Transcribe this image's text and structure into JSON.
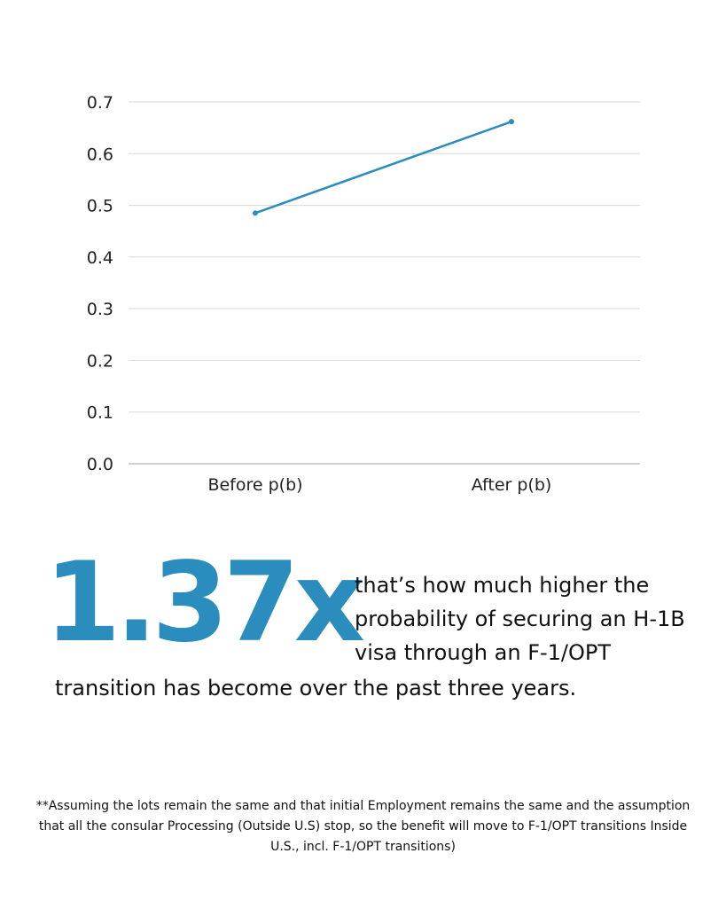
{
  "chart_data": {
    "type": "line",
    "categories": [
      "Before p(b)",
      "After p(b)"
    ],
    "series": [
      {
        "values": [
          0.485,
          0.662
        ]
      }
    ],
    "ylim": [
      0.0,
      0.7
    ],
    "yticks": [
      "0.0",
      "0.1",
      "0.2",
      "0.3",
      "0.4",
      "0.5",
      "0.6",
      "0.7"
    ],
    "grid": true,
    "line_color": "#2b8dbd"
  },
  "headline": {
    "value": "1.37x",
    "text_line1": "that’s how much higher the probability of securing an H-1B visa through an F-1/OPT",
    "text_line2": "transition has become over the past three years."
  },
  "footnote": "**Assuming the lots remain the same and that initial Employment remains the same and the assumption that all the consular Processing (Outside U.S) stop, so the benefit will move to F-1/OPT transitions Inside U.S., incl. F-1/OPT transitions)",
  "colors": {
    "accent": "#2b8dbd",
    "grid": "#d9d9d9",
    "axis": "#a6a6a6"
  }
}
